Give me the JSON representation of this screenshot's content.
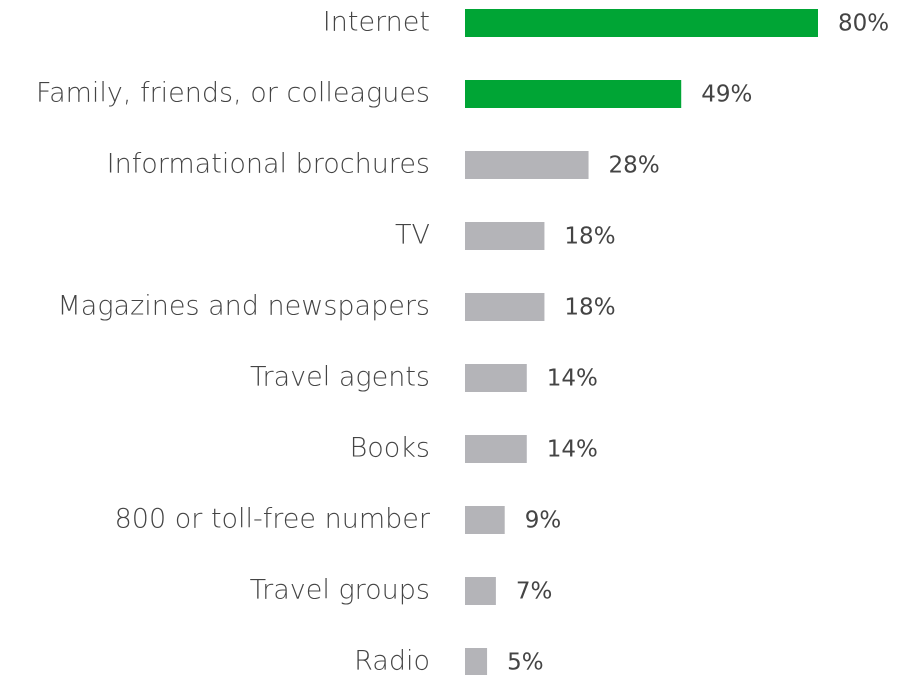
{
  "chart_data": {
    "type": "hbar",
    "categories": [
      "Internet",
      "Family, friends, or colleagues",
      "Informational brochures",
      "TV",
      "Magazines and newspapers",
      "Travel agents",
      "Books",
      "800 or toll-free number",
      "Travel groups",
      "Radio"
    ],
    "values": [
      80,
      49,
      28,
      18,
      18,
      14,
      14,
      9,
      7,
      5
    ],
    "value_labels": [
      "80%",
      "49%",
      "28%",
      "18%",
      "18%",
      "14%",
      "14%",
      "9%",
      "7%",
      "5%"
    ],
    "colors": [
      "#00a535",
      "#00a535",
      "#b4b4b8",
      "#b4b4b8",
      "#b4b4b8",
      "#b4b4b8",
      "#b4b4b8",
      "#b4b4b8",
      "#b4b4b8",
      "#b4b4b8"
    ]
  }
}
